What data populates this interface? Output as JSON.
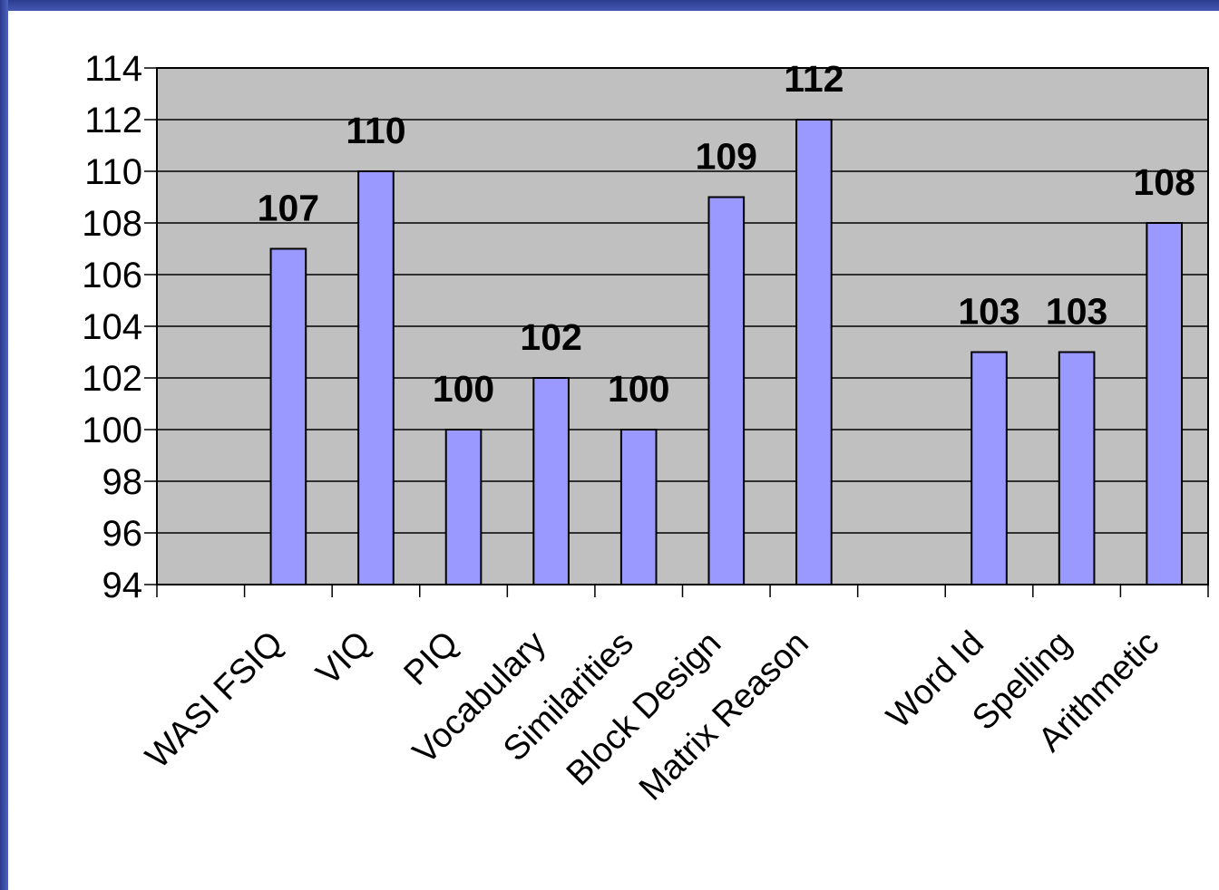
{
  "theme": {
    "frame_color": "#3a4ea6",
    "plot_bg": "#c0c0c0",
    "bar_color": "#9999ff",
    "slide_bg": "#ffffff"
  },
  "chart_data": {
    "type": "bar",
    "title": "",
    "xlabel": "",
    "ylabel": "",
    "categories": [
      "",
      "WASI FSIQ",
      "VIQ",
      "PIQ",
      "Vocabulary",
      "Similarities",
      "Block Design",
      "Matrix Reason",
      "",
      "Word Id",
      "Spelling",
      "Arithmetic"
    ],
    "values": [
      null,
      107,
      110,
      100,
      102,
      100,
      109,
      112,
      null,
      103,
      103,
      108
    ],
    "data_labels": [
      "",
      "107",
      "110",
      "100",
      "102",
      "100",
      "109",
      "112",
      "",
      "103",
      "103",
      "108"
    ],
    "ylim": [
      94,
      114
    ],
    "yticks": [
      94,
      96,
      98,
      100,
      102,
      104,
      106,
      108,
      110,
      112,
      114
    ],
    "ytick_labels": [
      "94",
      "96",
      "98",
      "100",
      "102",
      "104",
      "106",
      "108",
      "110",
      "112",
      "114"
    ],
    "grid": true,
    "legend": false
  }
}
